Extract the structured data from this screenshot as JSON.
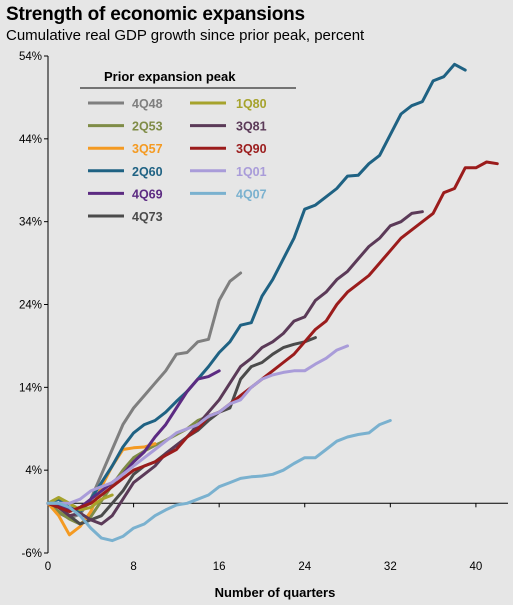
{
  "chart_data": {
    "type": "line",
    "title": "Strength of economic expansions",
    "subtitle": "Cumulative real GDP growth since prior peak, percent",
    "xlabel": "Number of quarters",
    "ylabel": "",
    "xlim": [
      0,
      43
    ],
    "ylim": [
      -6,
      54
    ],
    "x_ticks": [
      0,
      8,
      16,
      24,
      32,
      40
    ],
    "y_ticks": [
      -6,
      4,
      14,
      24,
      34,
      44,
      54
    ],
    "y_tick_labels": [
      "-6%",
      "4%",
      "14%",
      "24%",
      "34%",
      "44%",
      "54%"
    ],
    "grid": false,
    "legend_title": "Prior expansion peak",
    "legend_position": "top-left",
    "series": [
      {
        "name": "4Q48",
        "color": "#7f7f7f",
        "values": [
          [
            0,
            0
          ],
          [
            1,
            -1.2
          ],
          [
            2,
            -1.8
          ],
          [
            3,
            -1.3
          ],
          [
            4,
            0.5
          ],
          [
            5,
            3.5
          ],
          [
            6,
            6.5
          ],
          [
            7,
            9.5
          ],
          [
            8,
            11.5
          ],
          [
            9,
            13
          ],
          [
            10,
            14.5
          ],
          [
            11,
            16
          ],
          [
            12,
            18
          ],
          [
            13,
            18.2
          ],
          [
            14,
            19.5
          ],
          [
            15,
            19.8
          ],
          [
            16,
            24.5
          ],
          [
            17,
            26.8
          ],
          [
            18,
            27.8
          ]
        ]
      },
      {
        "name": "2Q53",
        "color": "#7f8c47",
        "values": [
          [
            0,
            0
          ],
          [
            1,
            -1
          ],
          [
            2,
            -1.9
          ],
          [
            3,
            -2.5
          ],
          [
            4,
            -1.6
          ],
          [
            5,
            0.3
          ],
          [
            6,
            2.2
          ],
          [
            7,
            4
          ],
          [
            8,
            5.5
          ],
          [
            9,
            6.3
          ],
          [
            10,
            7
          ],
          [
            11,
            7.6
          ],
          [
            12,
            8.3
          ],
          [
            13,
            9
          ],
          [
            14,
            10
          ],
          [
            15,
            10.5
          ],
          [
            16,
            11
          ]
        ]
      },
      {
        "name": "3Q57",
        "color": "#f49a22",
        "values": [
          [
            0,
            0
          ],
          [
            1,
            -1.5
          ],
          [
            2,
            -3.8
          ],
          [
            3,
            -2.8
          ],
          [
            4,
            -1
          ],
          [
            5,
            2
          ],
          [
            6,
            4.5
          ],
          [
            7,
            6.5
          ],
          [
            8,
            6.7
          ],
          [
            9,
            6.8
          ],
          [
            10,
            7.2
          ]
        ]
      },
      {
        "name": "2Q60",
        "color": "#1f6283",
        "values": [
          [
            0,
            0
          ],
          [
            1,
            0.5
          ],
          [
            2,
            -0.5
          ],
          [
            3,
            -1
          ],
          [
            4,
            0.5
          ],
          [
            5,
            2.5
          ],
          [
            6,
            4.5
          ],
          [
            7,
            6.8
          ],
          [
            8,
            8.5
          ],
          [
            9,
            9.5
          ],
          [
            10,
            10
          ],
          [
            11,
            11
          ],
          [
            12,
            12.3
          ],
          [
            13,
            13.5
          ],
          [
            14,
            15
          ],
          [
            15,
            16.5
          ],
          [
            16,
            18.2
          ],
          [
            17,
            19.5
          ],
          [
            18,
            21.5
          ],
          [
            19,
            21.8
          ],
          [
            20,
            25
          ],
          [
            21,
            27
          ],
          [
            22,
            29.5
          ],
          [
            23,
            32
          ],
          [
            24,
            35.5
          ],
          [
            25,
            36
          ],
          [
            26,
            37
          ],
          [
            27,
            38
          ],
          [
            28,
            39.5
          ],
          [
            29,
            39.6
          ],
          [
            30,
            41
          ],
          [
            31,
            42
          ],
          [
            32,
            44.5
          ],
          [
            33,
            47
          ],
          [
            34,
            48
          ],
          [
            35,
            48.5
          ],
          [
            36,
            51
          ],
          [
            37,
            51.5
          ],
          [
            38,
            53
          ],
          [
            39,
            52.3
          ]
        ]
      },
      {
        "name": "4Q69",
        "color": "#5c2b82",
        "values": [
          [
            0,
            0
          ],
          [
            1,
            -0.2
          ],
          [
            2,
            -0.8
          ],
          [
            3,
            -0.5
          ],
          [
            4,
            0.5
          ],
          [
            5,
            1.5
          ],
          [
            6,
            2.5
          ],
          [
            7,
            3.5
          ],
          [
            8,
            5
          ],
          [
            9,
            6.2
          ],
          [
            10,
            8
          ],
          [
            11,
            9.5
          ],
          [
            12,
            11.5
          ],
          [
            13,
            13.5
          ],
          [
            14,
            15
          ],
          [
            15,
            15.3
          ],
          [
            16,
            16
          ]
        ]
      },
      {
        "name": "4Q73",
        "color": "#4b4b4b",
        "values": [
          [
            0,
            0
          ],
          [
            1,
            -0.5
          ],
          [
            2,
            -1.5
          ],
          [
            3,
            -2.5
          ],
          [
            4,
            -2
          ],
          [
            5,
            -1.5
          ],
          [
            6,
            0
          ],
          [
            7,
            1.5
          ],
          [
            8,
            3.5
          ],
          [
            9,
            4.5
          ],
          [
            10,
            5
          ],
          [
            11,
            6
          ],
          [
            12,
            7
          ],
          [
            13,
            8
          ],
          [
            14,
            8.8
          ],
          [
            15,
            10
          ],
          [
            16,
            11
          ],
          [
            17,
            11.5
          ],
          [
            18,
            15
          ],
          [
            19,
            16.5
          ],
          [
            20,
            17
          ],
          [
            21,
            18
          ],
          [
            22,
            18.8
          ],
          [
            23,
            19.2
          ],
          [
            24,
            19.5
          ],
          [
            25,
            20
          ]
        ]
      },
      {
        "name": "1Q80",
        "color": "#a6a32c",
        "values": [
          [
            0,
            0
          ],
          [
            1,
            0.7
          ],
          [
            2,
            0
          ],
          [
            3,
            -0.8
          ],
          [
            4,
            -0.5
          ],
          [
            5,
            0.5
          ],
          [
            6,
            1
          ]
        ]
      },
      {
        "name": "3Q81",
        "color": "#5b3a58",
        "values": [
          [
            0,
            0
          ],
          [
            1,
            -0.5
          ],
          [
            2,
            -1.5
          ],
          [
            3,
            -1.2
          ],
          [
            4,
            -2
          ],
          [
            5,
            -2.5
          ],
          [
            6,
            -1.5
          ],
          [
            7,
            0.5
          ],
          [
            8,
            2.5
          ],
          [
            9,
            3.5
          ],
          [
            10,
            4.5
          ],
          [
            11,
            6
          ],
          [
            12,
            7
          ],
          [
            13,
            8
          ],
          [
            14,
            9.5
          ],
          [
            15,
            11
          ],
          [
            16,
            12.5
          ],
          [
            17,
            14.5
          ],
          [
            18,
            16.5
          ],
          [
            19,
            17.5
          ],
          [
            20,
            18.8
          ],
          [
            21,
            19.5
          ],
          [
            22,
            20.5
          ],
          [
            23,
            22
          ],
          [
            24,
            22.5
          ],
          [
            25,
            24.5
          ],
          [
            26,
            25.5
          ],
          [
            27,
            27
          ],
          [
            28,
            28
          ],
          [
            29,
            29.5
          ],
          [
            30,
            31
          ],
          [
            31,
            32
          ],
          [
            32,
            33.5
          ],
          [
            33,
            34
          ],
          [
            34,
            35
          ],
          [
            35,
            35.2
          ]
        ]
      },
      {
        "name": "3Q90",
        "color": "#9b1c1c",
        "values": [
          [
            0,
            0
          ],
          [
            1,
            -0.5
          ],
          [
            2,
            -1
          ],
          [
            3,
            -0.5
          ],
          [
            4,
            0
          ],
          [
            5,
            1
          ],
          [
            6,
            2
          ],
          [
            7,
            3
          ],
          [
            8,
            4
          ],
          [
            9,
            4.5
          ],
          [
            10,
            5
          ],
          [
            11,
            5.8
          ],
          [
            12,
            6.5
          ],
          [
            13,
            8
          ],
          [
            14,
            9
          ],
          [
            15,
            10.5
          ],
          [
            16,
            11
          ],
          [
            17,
            12
          ],
          [
            18,
            13
          ],
          [
            19,
            14
          ],
          [
            20,
            15
          ],
          [
            21,
            16
          ],
          [
            22,
            17
          ],
          [
            23,
            18
          ],
          [
            24,
            19.5
          ],
          [
            25,
            21
          ],
          [
            26,
            22
          ],
          [
            27,
            24
          ],
          [
            28,
            25.5
          ],
          [
            29,
            26.5
          ],
          [
            30,
            27.5
          ],
          [
            31,
            29
          ],
          [
            32,
            30.5
          ],
          [
            33,
            32
          ],
          [
            34,
            33
          ],
          [
            35,
            34
          ],
          [
            36,
            35
          ],
          [
            37,
            37.5
          ],
          [
            38,
            38
          ],
          [
            39,
            40.5
          ],
          [
            40,
            40.5
          ],
          [
            41,
            41.2
          ],
          [
            42,
            41
          ]
        ]
      },
      {
        "name": "1Q01",
        "color": "#a99cd9",
        "values": [
          [
            0,
            0
          ],
          [
            1,
            0
          ],
          [
            2,
            0
          ],
          [
            3,
            0.5
          ],
          [
            4,
            1.5
          ],
          [
            5,
            2
          ],
          [
            6,
            2.5
          ],
          [
            7,
            3.5
          ],
          [
            8,
            4.5
          ],
          [
            9,
            5.5
          ],
          [
            10,
            6.5
          ],
          [
            11,
            7.5
          ],
          [
            12,
            8.5
          ],
          [
            13,
            9
          ],
          [
            14,
            9.5
          ],
          [
            15,
            10.5
          ],
          [
            16,
            11
          ],
          [
            17,
            12
          ],
          [
            18,
            12.5
          ],
          [
            19,
            14
          ],
          [
            20,
            15
          ],
          [
            21,
            15.5
          ],
          [
            22,
            15.8
          ],
          [
            23,
            16
          ],
          [
            24,
            16
          ],
          [
            25,
            16.8
          ],
          [
            26,
            17.5
          ],
          [
            27,
            18.5
          ],
          [
            28,
            19
          ]
        ]
      },
      {
        "name": "4Q07",
        "color": "#7ab1cf",
        "values": [
          [
            0,
            0
          ],
          [
            1,
            0
          ],
          [
            2,
            -0.5
          ],
          [
            3,
            -1.5
          ],
          [
            4,
            -3
          ],
          [
            5,
            -4.2
          ],
          [
            6,
            -4.5
          ],
          [
            7,
            -4
          ],
          [
            8,
            -3
          ],
          [
            9,
            -2.5
          ],
          [
            10,
            -1.5
          ],
          [
            11,
            -0.8
          ],
          [
            12,
            -0.2
          ],
          [
            13,
            0
          ],
          [
            14,
            0.5
          ],
          [
            15,
            1
          ],
          [
            16,
            2
          ],
          [
            17,
            2.5
          ],
          [
            18,
            3
          ],
          [
            19,
            3.2
          ],
          [
            20,
            3.3
          ],
          [
            21,
            3.5
          ],
          [
            22,
            4
          ],
          [
            23,
            4.8
          ],
          [
            24,
            5.5
          ],
          [
            25,
            5.5
          ],
          [
            26,
            6.5
          ],
          [
            27,
            7.5
          ],
          [
            28,
            8
          ],
          [
            29,
            8.3
          ],
          [
            30,
            8.5
          ],
          [
            31,
            9.5
          ],
          [
            32,
            10
          ]
        ]
      }
    ],
    "legend_layout": [
      [
        "4Q48",
        "1Q80"
      ],
      [
        "2Q53",
        "3Q81"
      ],
      [
        "3Q57",
        "3Q90"
      ],
      [
        "2Q60",
        "1Q01"
      ],
      [
        "4Q69",
        "4Q07"
      ],
      [
        "4Q73",
        null
      ]
    ]
  }
}
